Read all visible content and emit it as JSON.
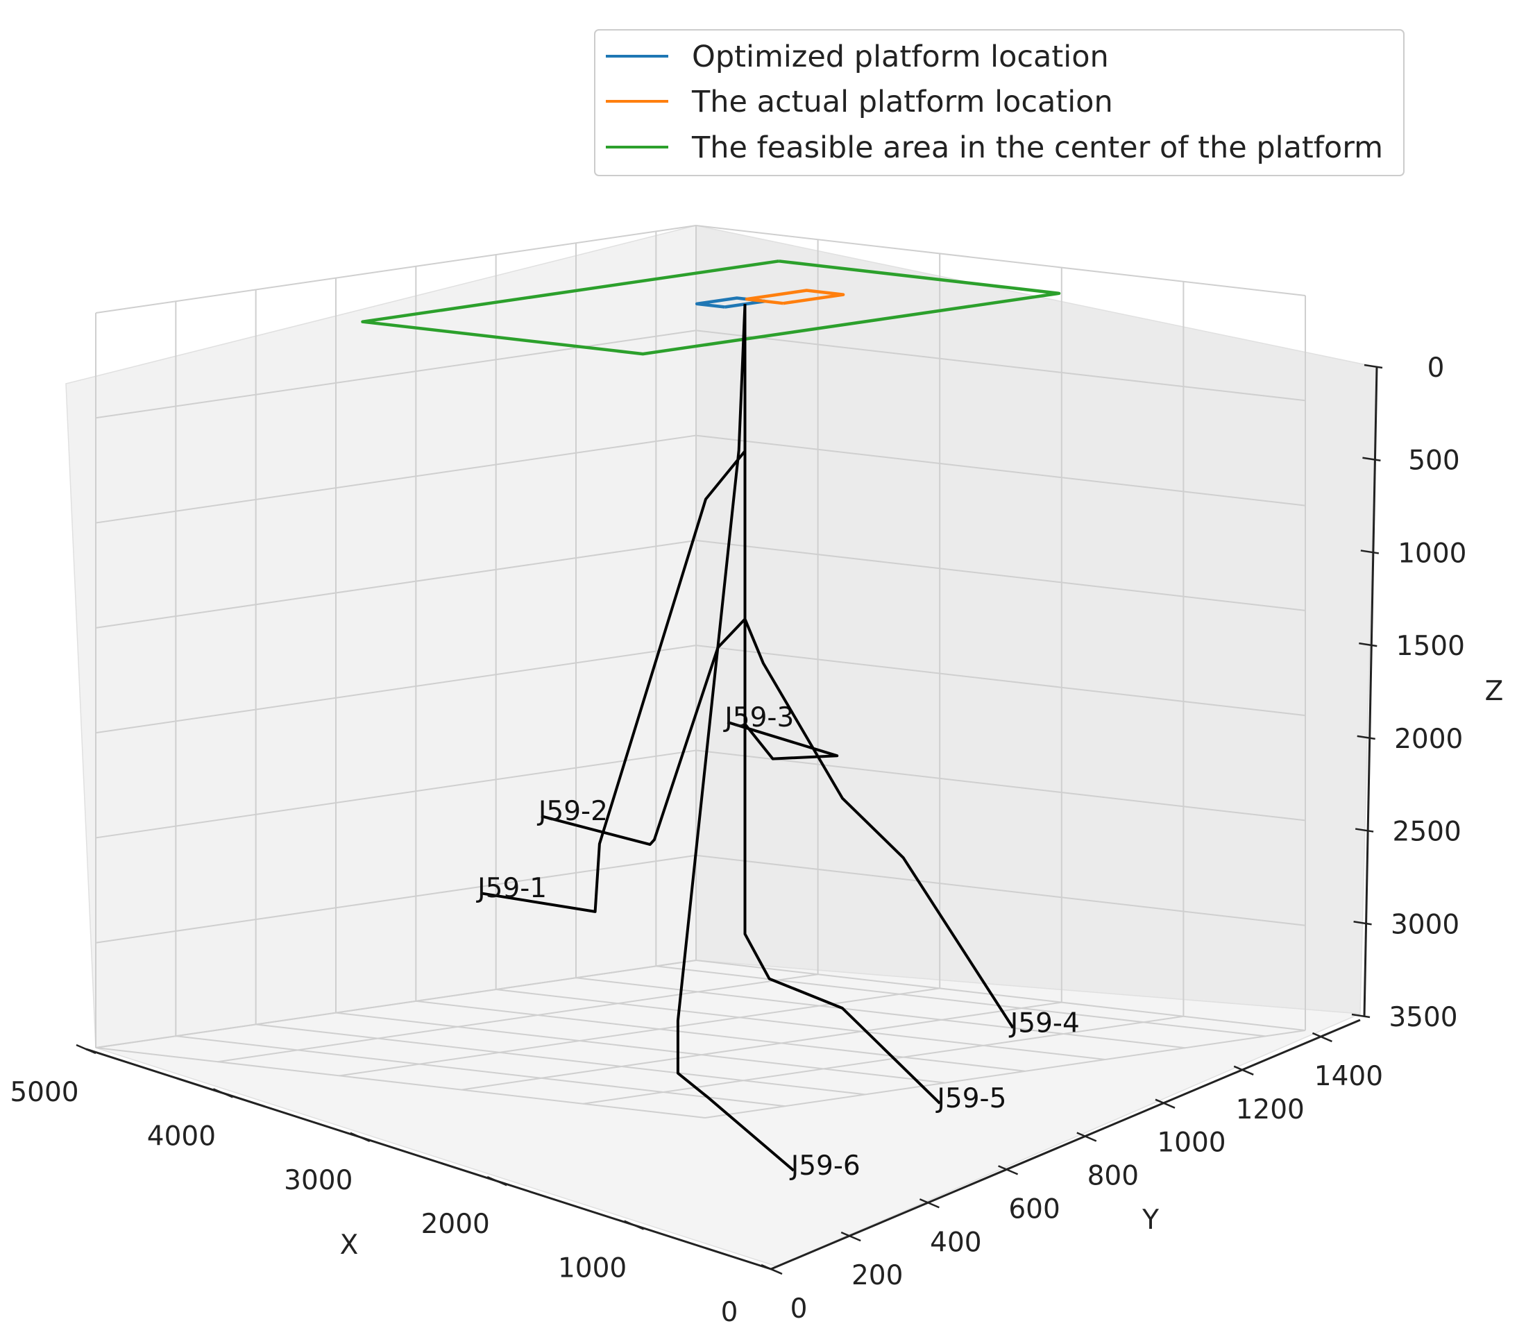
{
  "chart_data": {
    "type": "line",
    "projection": "3d",
    "legend_position": "upper-right",
    "grid": true,
    "xlabel": "X",
    "ylabel": "Y",
    "zlabel": "Z",
    "xlim": [
      0,
      5000
    ],
    "ylim": [
      0,
      1500
    ],
    "zlim": [
      0,
      3500
    ],
    "z_inverted": true,
    "x_ticks": [
      "0",
      "1000",
      "2000",
      "3000",
      "4000",
      "5000"
    ],
    "y_ticks": [
      "0",
      "200",
      "400",
      "600",
      "800",
      "1000",
      "1200",
      "1400"
    ],
    "z_ticks": [
      "0",
      "500",
      "1000",
      "1500",
      "2000",
      "2500",
      "3000",
      "3500"
    ],
    "series": [
      {
        "name": "Optimized platform location",
        "color": "#1f77b4",
        "points": [
          [
            2300,
            750,
            0
          ],
          [
            2530,
            750,
            0
          ],
          [
            2530,
            850,
            0
          ],
          [
            2300,
            850,
            0
          ],
          [
            2300,
            750,
            0
          ]
        ]
      },
      {
        "name": "The actual platform location",
        "color": "#ff7f0e",
        "points": [
          [
            2150,
            850,
            0
          ],
          [
            2450,
            850,
            0
          ],
          [
            2450,
            1000,
            0
          ],
          [
            2150,
            1000,
            0
          ],
          [
            2150,
            850,
            0
          ]
        ]
      },
      {
        "name": "The feasible area in the center of the platform",
        "color": "#2ca02c",
        "points": [
          [
            3500,
            1250,
            0
          ],
          [
            3500,
            210,
            0
          ],
          [
            1200,
            210,
            0
          ],
          [
            1200,
            1250,
            0
          ],
          [
            3500,
            1250,
            0
          ]
        ]
      }
    ],
    "wells": [
      {
        "label": "J59-1",
        "color": "#000000",
        "points": [
          [
            2300,
            800,
            0
          ],
          [
            2300,
            800,
            700
          ],
          [
            2950,
            900,
            1000
          ],
          [
            4150,
            1000,
            2750
          ],
          [
            4350,
            1050,
            3100
          ],
          [
            4800,
            900,
            3000
          ]
        ]
      },
      {
        "label": "J59-2",
        "color": "#000000",
        "points": [
          [
            2300,
            800,
            0
          ],
          [
            2300,
            800,
            1500
          ],
          [
            2850,
            900,
            1700
          ],
          [
            3700,
            1000,
            2700
          ],
          [
            3900,
            1050,
            2750
          ],
          [
            4300,
            900,
            2600
          ]
        ]
      },
      {
        "label": "J59-3",
        "color": "#000000",
        "points": [
          [
            2300,
            800,
            0
          ],
          [
            2300,
            800,
            1500
          ],
          [
            2300,
            800,
            2000
          ],
          [
            2400,
            900,
            2200
          ],
          [
            2200,
            1000,
            2200
          ],
          [
            3100,
            1000,
            2100
          ]
        ]
      },
      {
        "label": "J59-4",
        "color": "#000000",
        "points": [
          [
            2300,
            800,
            0
          ],
          [
            2300,
            800,
            1500
          ],
          [
            2150,
            800,
            1700
          ],
          [
            1500,
            800,
            2300
          ],
          [
            1000,
            800,
            2550
          ],
          [
            100,
            800,
            3300
          ]
        ]
      },
      {
        "label": "J59-5",
        "color": "#000000",
        "points": [
          [
            2300,
            800,
            0
          ],
          [
            2300,
            800,
            1500
          ],
          [
            2300,
            800,
            3000
          ],
          [
            2100,
            800,
            3200
          ],
          [
            1500,
            800,
            3300
          ],
          [
            700,
            800,
            3700
          ]
        ]
      },
      {
        "label": "J59-6",
        "color": "#000000",
        "points": [
          [
            2300,
            800,
            0
          ],
          [
            2350,
            800,
            700
          ],
          [
            2850,
            800,
            3450
          ],
          [
            2850,
            800,
            3700
          ],
          [
            2600,
            800,
            3800
          ],
          [
            1900,
            800,
            4100
          ]
        ]
      }
    ]
  }
}
